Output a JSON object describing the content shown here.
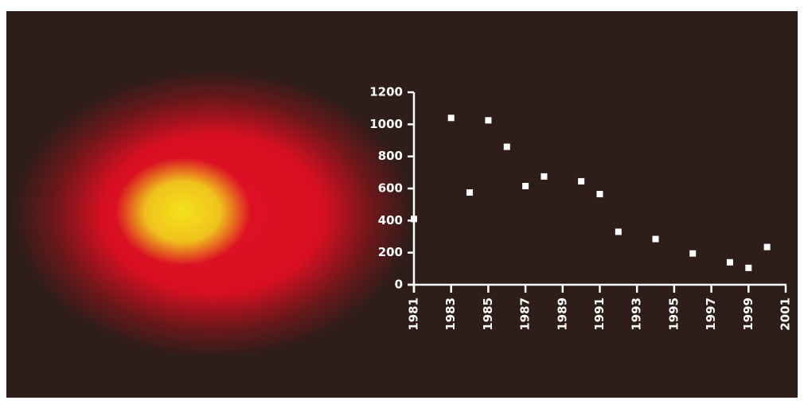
{
  "chart_data": {
    "type": "scatter",
    "x": [
      1981,
      1983,
      1984,
      1985,
      1986,
      1987,
      1988,
      1990,
      1991,
      1992,
      1994,
      1996,
      1998,
      1999,
      2000
    ],
    "values": [
      410,
      1040,
      575,
      1025,
      860,
      615,
      675,
      645,
      565,
      330,
      285,
      195,
      140,
      105,
      235
    ],
    "color": "#ffffff",
    "xlim": [
      1981,
      2001
    ],
    "xticks": [
      1981,
      1983,
      1985,
      1987,
      1989,
      1991,
      1993,
      1995,
      1997,
      1999,
      2001
    ],
    "ylim": [
      0,
      1200
    ],
    "yticks": [
      0,
      200,
      400,
      600,
      800,
      1000,
      1200
    ]
  }
}
